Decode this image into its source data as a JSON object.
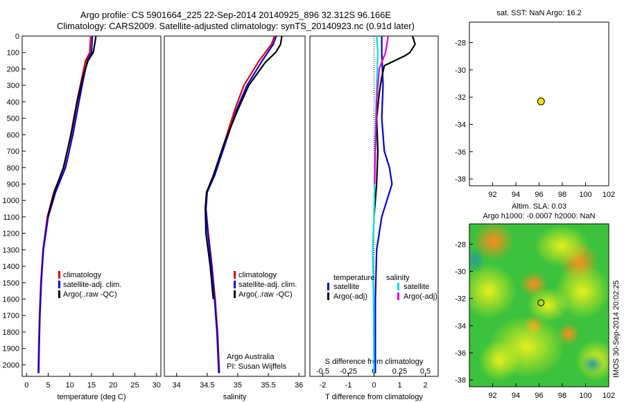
{
  "title_line1": "Argo profile: CS 5901664_225 22-Sep-2014 20140925_896 32.312S 96.166E",
  "title_line2": "Climatology: CARS2009. Satellite-adjusted climatology: synTS_20140923.nc (0.91d later)",
  "stamp": "IMOS 30-Sep-2014 20:02:25",
  "colors": {
    "climatology": "#e00000",
    "satellite": "#0000e0",
    "argo": "#000000",
    "sal_satellite": "#00e0e0",
    "sal_argo": "#e000e0",
    "marker": "#f2e000"
  },
  "chart_data": [
    {
      "id": "temperature",
      "type": "line",
      "xlabel": "temperature (deg C)",
      "ylabel": "",
      "xlim": [
        -1,
        31
      ],
      "ylim": [
        0,
        2070
      ],
      "xticks": [
        0,
        5,
        10,
        15,
        20,
        25,
        30
      ],
      "yticks": [
        0,
        100,
        200,
        300,
        400,
        500,
        600,
        700,
        800,
        900,
        1000,
        1100,
        1200,
        1300,
        1400,
        1500,
        1600,
        1700,
        1800,
        1900,
        2000
      ],
      "legend": [
        "climatology",
        "satellite-adj. clim.",
        "Argo(..raw -QC)"
      ],
      "series": [
        {
          "name": "climatology",
          "color_key": "climatology",
          "points": [
            [
              14.8,
              0
            ],
            [
              14.6,
              100
            ],
            [
              13.6,
              150
            ],
            [
              12.8,
              250
            ],
            [
              11.6,
              400
            ],
            [
              10.2,
              600
            ],
            [
              8.6,
              800
            ],
            [
              6.3,
              950
            ],
            [
              4.8,
              1100
            ],
            [
              3.8,
              1300
            ],
            [
              3.3,
              1500
            ],
            [
              3.0,
              1700
            ],
            [
              2.8,
              1900
            ],
            [
              2.7,
              2050
            ]
          ]
        },
        {
          "name": "satellite-adj. clim.",
          "color_key": "satellite",
          "points": [
            [
              15.2,
              0
            ],
            [
              15.0,
              100
            ],
            [
              14.0,
              150
            ],
            [
              13.2,
              250
            ],
            [
              12.1,
              400
            ],
            [
              10.7,
              600
            ],
            [
              9.0,
              800
            ],
            [
              6.7,
              950
            ],
            [
              5.0,
              1100
            ],
            [
              3.9,
              1300
            ],
            [
              3.4,
              1500
            ],
            [
              3.1,
              1700
            ],
            [
              2.9,
              1900
            ],
            [
              2.8,
              2050
            ]
          ]
        },
        {
          "name": "Argo(..raw -QC)",
          "color_key": "argo",
          "points": [
            [
              16.0,
              0
            ],
            [
              15.8,
              40
            ],
            [
              15.4,
              100
            ],
            [
              14.2,
              150
            ],
            [
              13.0,
              250
            ],
            [
              11.7,
              400
            ],
            [
              10.3,
              600
            ],
            [
              8.5,
              800
            ],
            [
              6.4,
              950
            ],
            [
              4.9,
              1100
            ]
          ]
        }
      ]
    },
    {
      "id": "salinity",
      "type": "line",
      "xlabel": "salinity",
      "ylabel": "",
      "xlim": [
        33.8,
        36.1
      ],
      "ylim": [
        0,
        2070
      ],
      "xticks": [
        34,
        34.5,
        35,
        35.5,
        36
      ],
      "legend": [
        "climatology",
        "satellite-adj. clim.",
        "Argo(..raw -QC)"
      ],
      "series": [
        {
          "name": "climatology",
          "color_key": "climatology",
          "points": [
            [
              35.6,
              0
            ],
            [
              35.55,
              50
            ],
            [
              35.35,
              150
            ],
            [
              35.1,
              300
            ],
            [
              34.95,
              450
            ],
            [
              34.78,
              650
            ],
            [
              34.6,
              850
            ],
            [
              34.5,
              950
            ],
            [
              34.48,
              1050
            ],
            [
              34.52,
              1200
            ],
            [
              34.58,
              1400
            ],
            [
              34.63,
              1600
            ],
            [
              34.67,
              1800
            ],
            [
              34.7,
              2050
            ]
          ]
        },
        {
          "name": "satellite-adj. clim.",
          "color_key": "satellite",
          "points": [
            [
              35.63,
              0
            ],
            [
              35.58,
              50
            ],
            [
              35.4,
              150
            ],
            [
              35.15,
              300
            ],
            [
              34.98,
              450
            ],
            [
              34.8,
              650
            ],
            [
              34.62,
              850
            ],
            [
              34.5,
              950
            ],
            [
              34.48,
              1050
            ],
            [
              34.51,
              1200
            ],
            [
              34.57,
              1400
            ],
            [
              34.62,
              1600
            ],
            [
              34.66,
              1800
            ],
            [
              34.69,
              2050
            ]
          ]
        },
        {
          "name": "Argo(..raw -QC)",
          "color_key": "argo",
          "points": [
            [
              35.72,
              0
            ],
            [
              35.7,
              50
            ],
            [
              35.62,
              100
            ],
            [
              35.45,
              160
            ],
            [
              35.18,
              300
            ],
            [
              35.0,
              450
            ],
            [
              34.78,
              650
            ],
            [
              34.6,
              850
            ],
            [
              34.49,
              950
            ],
            [
              34.47,
              1050
            ],
            [
              34.48,
              1200
            ],
            [
              34.55,
              1400
            ],
            [
              34.6,
              1600
            ]
          ]
        }
      ]
    },
    {
      "id": "difference",
      "type": "line",
      "xlabel": "T difference from climatology",
      "xlabel_top": "S difference from climatology",
      "xlim": [
        -2.5,
        2.5
      ],
      "ylim": [
        0,
        2070
      ],
      "xticks": [
        -2,
        -1,
        0,
        1,
        2
      ],
      "xticks_top": [
        -0.5,
        -0.25,
        0,
        0.25,
        0.5
      ],
      "legend_temperature_title": "temperature",
      "legend_salinity_title": "salinity",
      "legend_temperature": [
        "satellite",
        "Argo(-adj)"
      ],
      "legend_salinity": [
        "satellite",
        "Argo(-adj)"
      ],
      "series": [
        {
          "name": "T satellite",
          "color_key": "satellite",
          "points": [
            [
              0.3,
              0
            ],
            [
              0.3,
              100
            ],
            [
              0.35,
              300
            ],
            [
              0.3,
              500
            ],
            [
              0.4,
              700
            ],
            [
              0.6,
              800
            ],
            [
              0.7,
              900
            ],
            [
              0.5,
              1000
            ],
            [
              0.3,
              1100
            ],
            [
              0.1,
              1300
            ],
            [
              0.05,
              1600
            ],
            [
              0.05,
              2050
            ]
          ]
        },
        {
          "name": "T Argo(-adj)",
          "color_key": "argo",
          "points": [
            [
              1.5,
              0
            ],
            [
              1.6,
              50
            ],
            [
              1.4,
              100
            ],
            [
              1.2,
              120
            ],
            [
              0.4,
              180
            ],
            [
              0.3,
              250
            ],
            [
              0.2,
              350
            ],
            [
              0.1,
              500
            ],
            [
              0.15,
              700
            ],
            [
              0.1,
              900
            ],
            [
              0.0,
              1100
            ]
          ]
        },
        {
          "name": "S satellite",
          "color_key": "sal_satellite",
          "points": [
            [
              0.1,
              0
            ],
            [
              0.15,
              100
            ],
            [
              0.1,
              300
            ],
            [
              0.05,
              600
            ],
            [
              0.02,
              900
            ],
            [
              0.0,
              1100
            ],
            [
              -0.05,
              1300
            ],
            [
              -0.02,
              1600
            ],
            [
              0.0,
              2050
            ]
          ]
        },
        {
          "name": "S Argo(-adj)",
          "color_key": "sal_argo",
          "points": [
            [
              0.55,
              0
            ],
            [
              0.5,
              50
            ],
            [
              0.45,
              100
            ],
            [
              0.2,
              200
            ],
            [
              0.1,
              400
            ],
            [
              0.05,
              700
            ],
            [
              0.02,
              900
            ]
          ]
        }
      ]
    },
    {
      "id": "sst_map",
      "type": "scatter",
      "title": "sat. SST: NaN Argo: 16.2",
      "xlim": [
        90,
        102
      ],
      "ylim": [
        -38.5,
        -26.5
      ],
      "xticks": [
        92,
        94,
        96,
        98,
        100,
        102
      ],
      "yticks": [
        -28,
        -30,
        -32,
        -34,
        -36,
        -38
      ],
      "points": [
        [
          96.166,
          -32.312
        ]
      ]
    },
    {
      "id": "sla_map",
      "type": "heatmap",
      "title_line1": "Altim. SLA: 0.03",
      "title_line2": "Argo h1000: -0.0007 h2000: NaN",
      "xlim": [
        90,
        102
      ],
      "ylim": [
        -38.5,
        -26.5
      ],
      "xticks": [
        92,
        94,
        96,
        98,
        100,
        102
      ],
      "yticks": [
        -28,
        -30,
        -32,
        -34,
        -36,
        -38
      ],
      "points": [
        [
          96.166,
          -32.312
        ]
      ]
    }
  ],
  "footer": {
    "argo_australia": "Argo Australia",
    "pi": "PI: Susan Wijffels"
  }
}
